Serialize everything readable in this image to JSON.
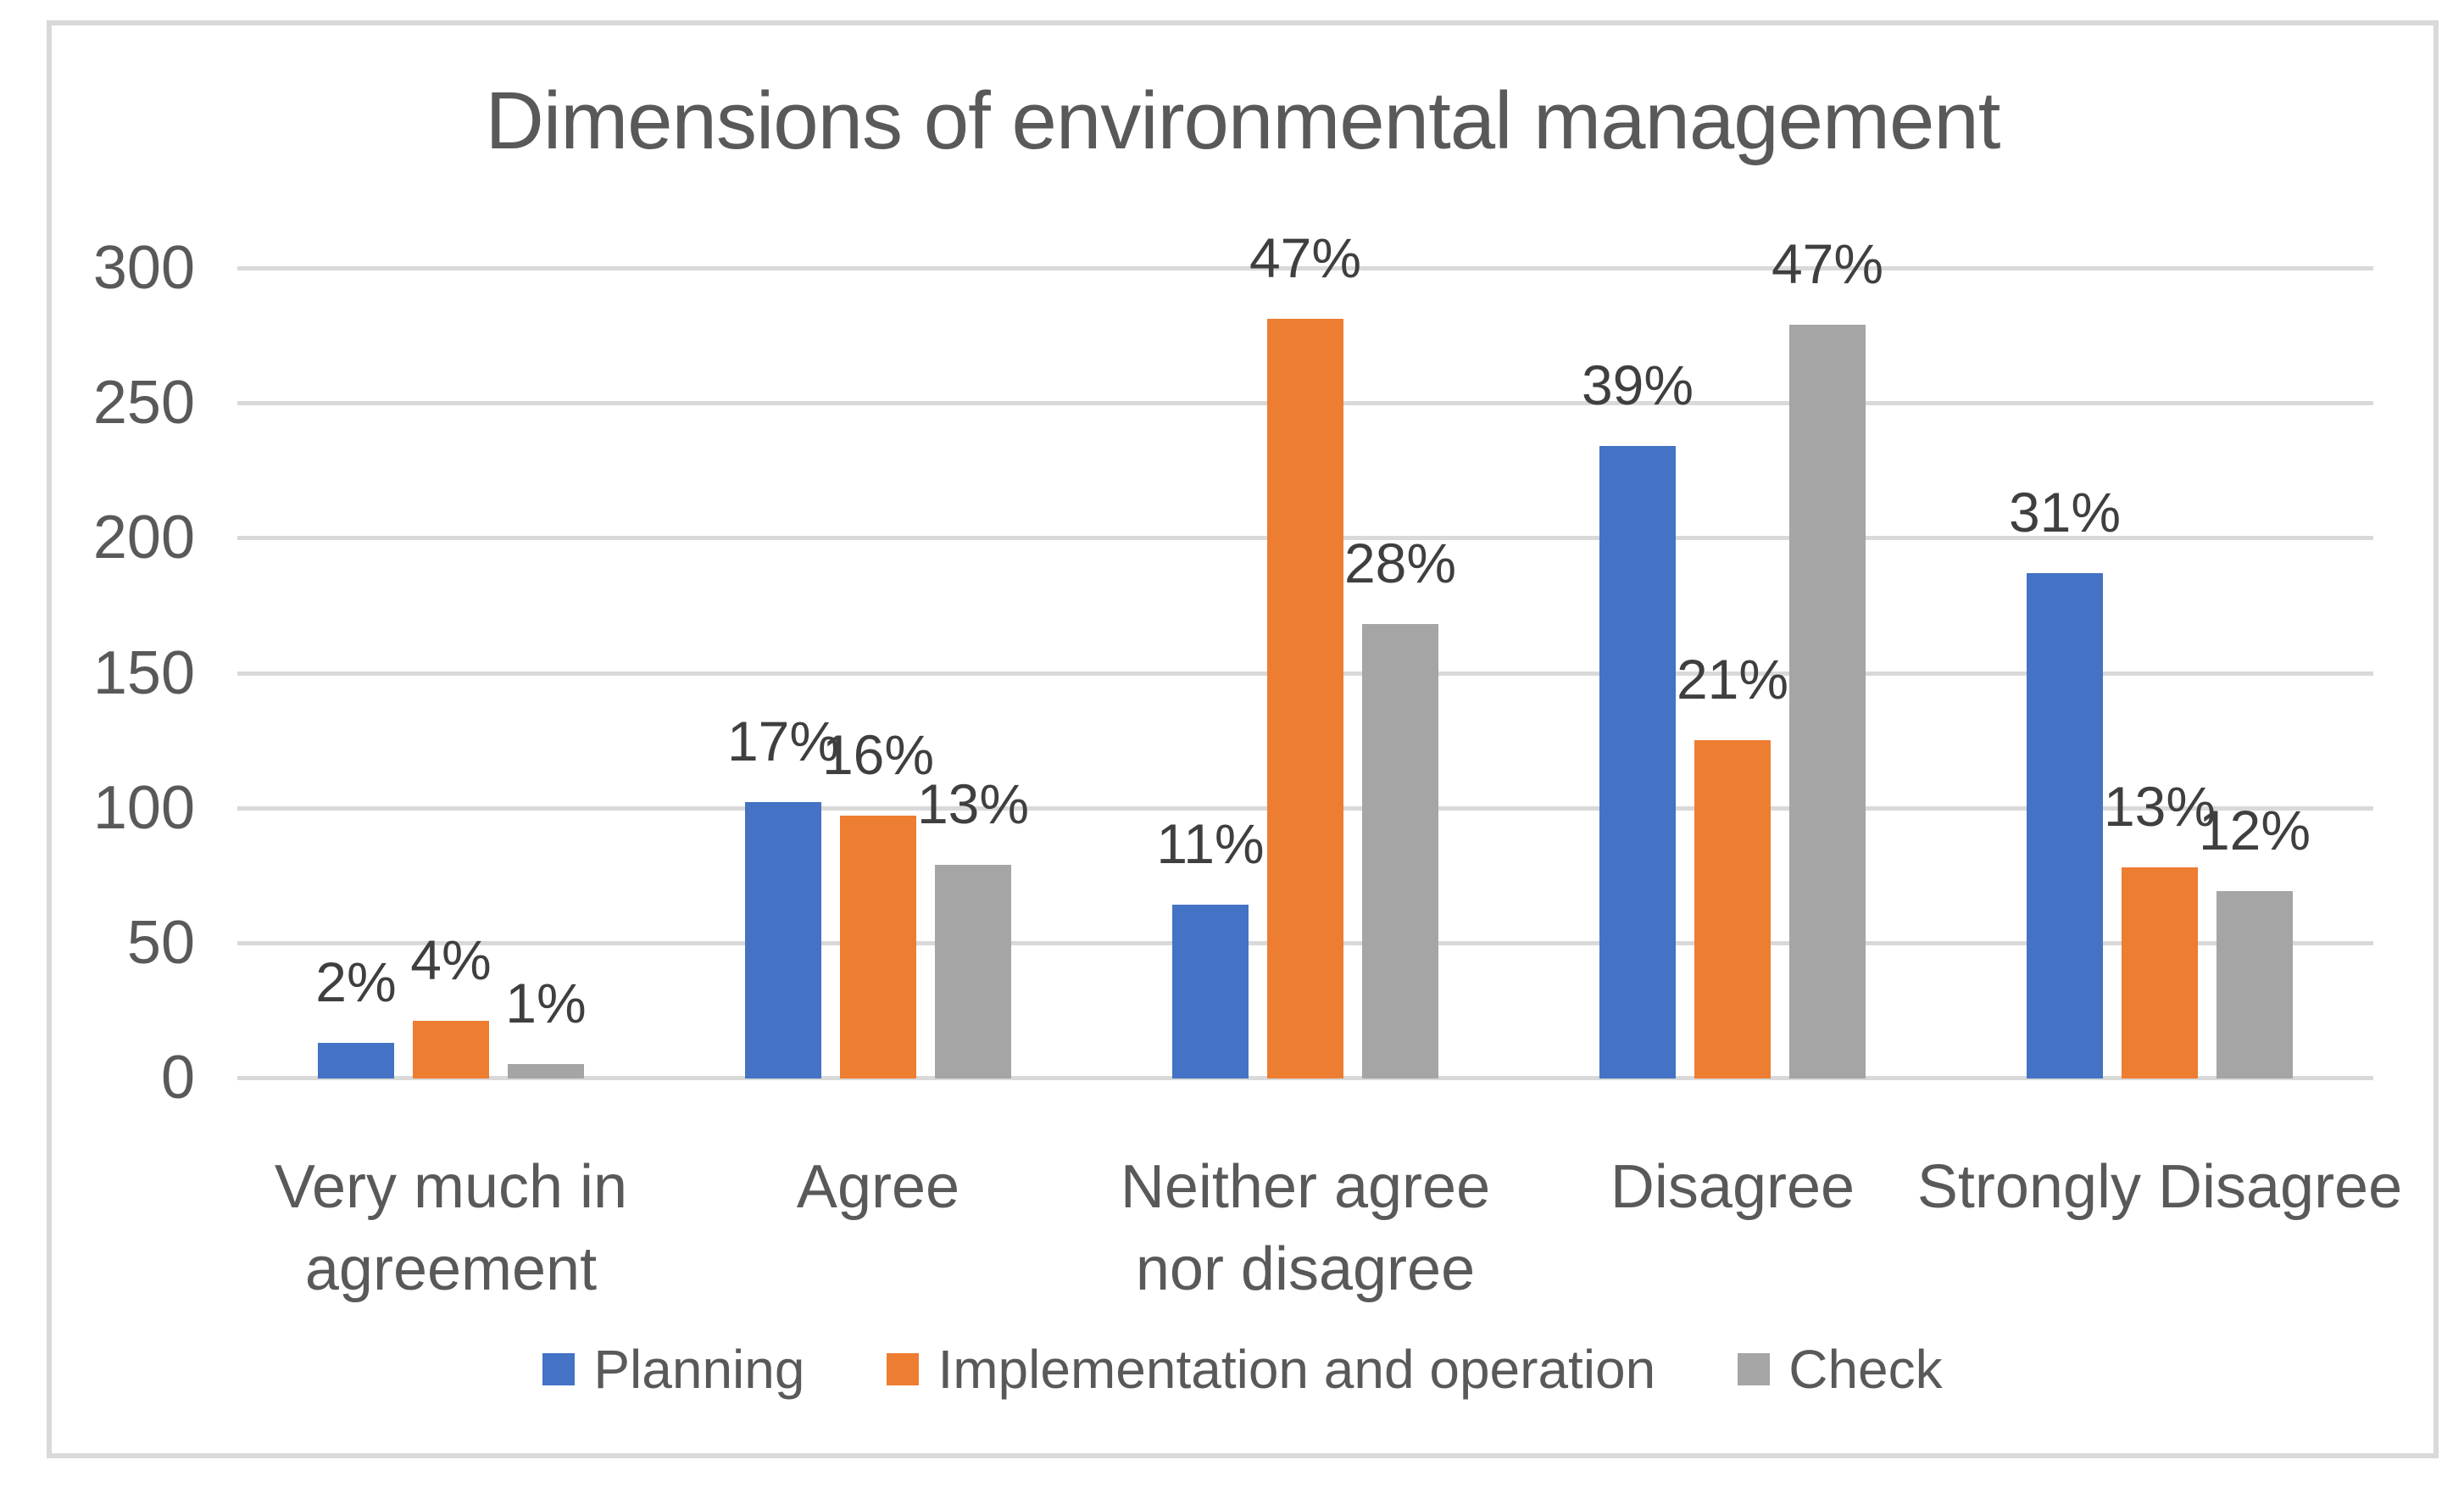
{
  "chart_data": {
    "type": "bar",
    "title": "Dimensions of environmental management",
    "categories": [
      {
        "label": "Very much in agreement",
        "lines": [
          "Very much in",
          "agreement"
        ]
      },
      {
        "label": "Agree",
        "lines": [
          "Agree"
        ]
      },
      {
        "label": "Neither agree nor disagree",
        "lines": [
          "Neither agree",
          "nor disagree"
        ]
      },
      {
        "label": "Disagree",
        "lines": [
          "Disagree"
        ]
      },
      {
        "label": "Strongly Disagree",
        "lines": [
          "Strongly Disagree"
        ]
      }
    ],
    "series": [
      {
        "name": "Planning",
        "color": "#4472C4",
        "values": [
          13,
          102,
          64,
          234,
          187
        ],
        "labels": [
          "2%",
          "17%",
          "11%",
          "39%",
          "31%"
        ]
      },
      {
        "name": "Implementation and operation",
        "color": "#ED7D31",
        "values": [
          21,
          97,
          281,
          125,
          78
        ],
        "labels": [
          "4%",
          "16%",
          "47%",
          "21%",
          "13%"
        ]
      },
      {
        "name": "Check",
        "color": "#A5A5A5",
        "values": [
          5,
          79,
          168,
          279,
          69
        ],
        "labels": [
          "1%",
          "13%",
          "28%",
          "47%",
          "12%"
        ]
      }
    ],
    "xlabel": "",
    "ylabel": "",
    "ylim": [
      0,
      300
    ],
    "y_ticks": [
      300,
      250,
      200,
      150,
      100,
      50,
      0
    ],
    "grid": true,
    "legend_position": "bottom"
  },
  "colors": {
    "text": "#595959",
    "data_label": "#3f3f3f",
    "gridline": "#d9d9d9",
    "frame_border": "#d9d9d9",
    "background": "#ffffff"
  }
}
